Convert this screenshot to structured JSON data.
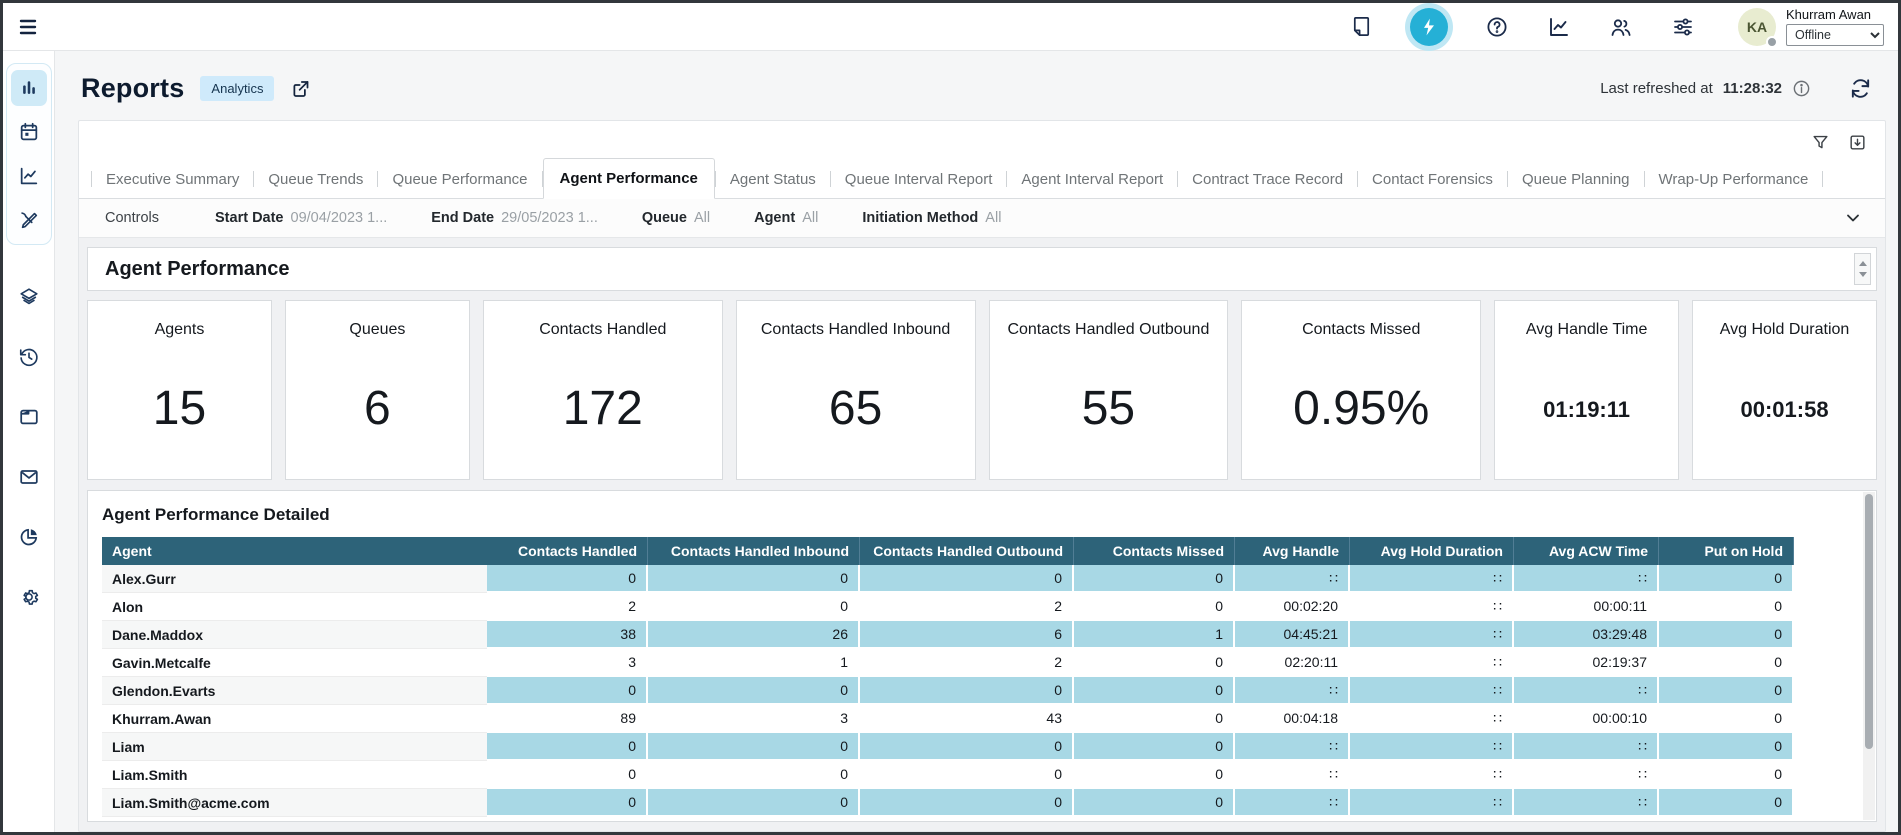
{
  "colors": {
    "accent_cyan": "#25b0d6",
    "table_header_teal": "#2d6379",
    "table_cell_blue": "#a8d8e5",
    "navy_icon": "#1b2b4a",
    "badge_blue_bg": "#cfeafb",
    "active_nav_bg": "#cfeaf7"
  },
  "icons": {
    "topbar": [
      "note-icon",
      "bolt-icon",
      "help-icon",
      "line-chart-icon",
      "users-icon",
      "sliders-icon"
    ],
    "sidebar": [
      "bar-chart-icon",
      "calendar-icon",
      "trend-icon",
      "design-icon",
      "layers-icon",
      "history-icon",
      "window-icon",
      "mail-icon",
      "pie-chart-icon",
      "gear-icon"
    ]
  },
  "topbar": {
    "user": {
      "name": "Khurram Awan",
      "initials": "KA",
      "status": "Offline"
    }
  },
  "header": {
    "title": "Reports",
    "badge": "Analytics",
    "refresh_label": "Last refreshed at",
    "refresh_time": "11:28:32"
  },
  "tabs": [
    {
      "label": "Executive Summary",
      "active": false
    },
    {
      "label": "Queue Trends",
      "active": false
    },
    {
      "label": "Queue Performance",
      "active": false
    },
    {
      "label": "Agent Performance",
      "active": true
    },
    {
      "label": "Agent Status",
      "active": false
    },
    {
      "label": "Queue Interval Report",
      "active": false
    },
    {
      "label": "Agent Interval Report",
      "active": false
    },
    {
      "label": "Contract Trace Record",
      "active": false
    },
    {
      "label": "Contact Forensics",
      "active": false
    },
    {
      "label": "Queue Planning",
      "active": false
    },
    {
      "label": "Wrap-Up Performance",
      "active": false
    }
  ],
  "controls": {
    "label": "Controls",
    "filters": [
      {
        "label": "Start Date",
        "value": "09/04/2023 1..."
      },
      {
        "label": "End Date",
        "value": "29/05/2023 1..."
      },
      {
        "label": "Queue",
        "value": "All"
      },
      {
        "label": "Agent",
        "value": "All"
      },
      {
        "label": "Initiation Method",
        "value": "All"
      }
    ]
  },
  "section_title": "Agent Performance",
  "kpis": [
    {
      "label": "Agents",
      "value": "15"
    },
    {
      "label": "Queues",
      "value": "6"
    },
    {
      "label": "Contacts Handled",
      "value": "172"
    },
    {
      "label": "Contacts Handled Inbound",
      "value": "65"
    },
    {
      "label": "Contacts Handled Outbound",
      "value": "55"
    },
    {
      "label": "Contacts Missed",
      "value": "0.95%"
    },
    {
      "label": "Avg Handle Time",
      "value": "01:19:11"
    },
    {
      "label": "Avg Hold Duration",
      "value": "00:01:58"
    }
  ],
  "table": {
    "title": "Agent Performance Detailed",
    "columns": [
      "Agent",
      "Contacts Handled",
      "Contacts Handled Inbound",
      "Contacts Handled Outbound",
      "Contacts Missed",
      "Avg Handle",
      "Avg Hold Duration",
      "Avg ACW Time",
      "Put on Hold"
    ],
    "rows": [
      {
        "agent": "Alex.Gurr",
        "values": [
          "0",
          "0",
          "0",
          "0",
          "∷",
          "∷",
          "∷",
          "0"
        ]
      },
      {
        "agent": "Alon",
        "values": [
          "2",
          "0",
          "2",
          "0",
          "00:02:20",
          "∷",
          "00:00:11",
          "0"
        ]
      },
      {
        "agent": "Dane.Maddox",
        "values": [
          "38",
          "26",
          "6",
          "1",
          "04:45:21",
          "∷",
          "03:29:48",
          "0"
        ]
      },
      {
        "agent": "Gavin.Metcalfe",
        "values": [
          "3",
          "1",
          "2",
          "0",
          "02:20:11",
          "∷",
          "02:19:37",
          "0"
        ]
      },
      {
        "agent": "Glendon.Evarts",
        "values": [
          "0",
          "0",
          "0",
          "0",
          "∷",
          "∷",
          "∷",
          "0"
        ]
      },
      {
        "agent": "Khurram.Awan",
        "values": [
          "89",
          "3",
          "43",
          "0",
          "00:04:18",
          "∷",
          "00:00:10",
          "0"
        ]
      },
      {
        "agent": "Liam",
        "values": [
          "0",
          "0",
          "0",
          "0",
          "∷",
          "∷",
          "∷",
          "0"
        ]
      },
      {
        "agent": "Liam.Smith",
        "values": [
          "0",
          "0",
          "0",
          "0",
          "∷",
          "∷",
          "∷",
          "0"
        ]
      },
      {
        "agent": "Liam.Smith@acme.com",
        "values": [
          "0",
          "0",
          "0",
          "0",
          "∷",
          "∷",
          "∷",
          "0"
        ]
      }
    ]
  }
}
